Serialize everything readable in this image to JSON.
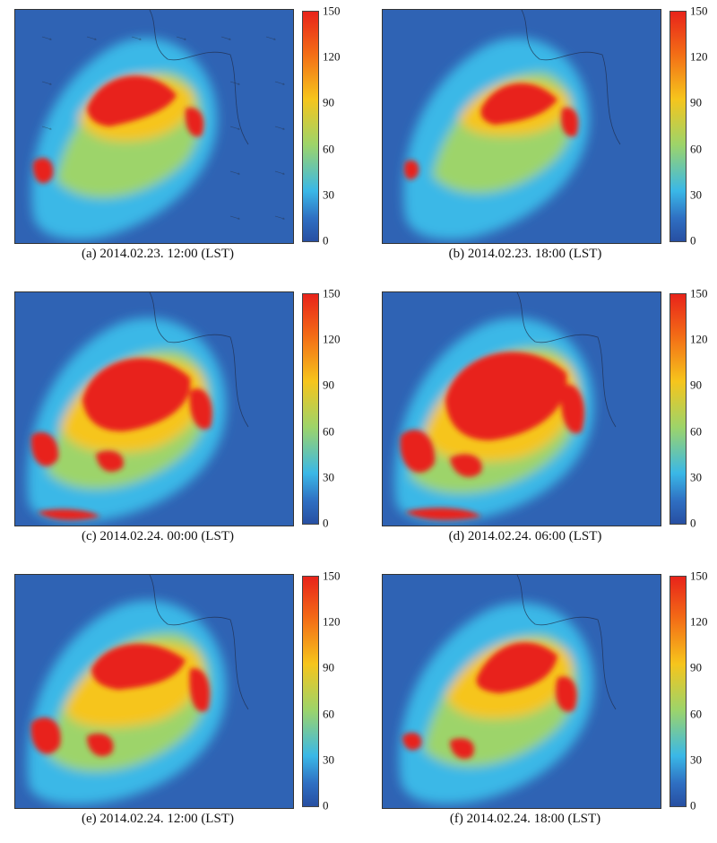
{
  "colorbar": {
    "ticks": [
      "150",
      "120",
      "90",
      "60",
      "30",
      "0"
    ],
    "colors": [
      "#e8231a",
      "#f36b16",
      "#f6c51c",
      "#9dd46a",
      "#3ab8e7",
      "#2f6fc2",
      "#274fa2"
    ]
  },
  "panels": [
    {
      "caption": "(a) 2014.02.23. 12:00 (LST)"
    },
    {
      "caption": "(b) 2014.02.23. 18:00 (LST)"
    },
    {
      "caption": "(c) 2014.02.24. 00:00 (LST)"
    },
    {
      "caption": "(d) 2014.02.24. 06:00 (LST)"
    },
    {
      "caption": "(e) 2014.02.24. 12:00 (LST)"
    },
    {
      "caption": "(f) 2014.02.24. 18:00 (LST)"
    }
  ]
}
